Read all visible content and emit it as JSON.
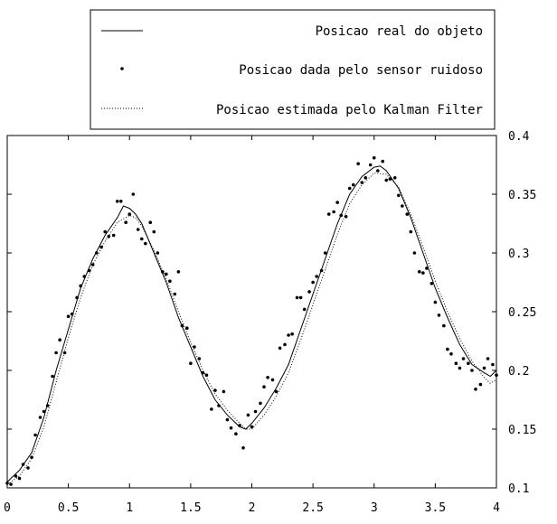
{
  "chart_data": {
    "type": "line",
    "title": "",
    "xlabel": "",
    "ylabel": "",
    "xlim": [
      0,
      4
    ],
    "ylim": [
      0.1,
      0.4
    ],
    "x_ticks": [
      0,
      0.5,
      1,
      1.5,
      2,
      2.5,
      3,
      3.5,
      4
    ],
    "x_tick_labels": [
      "0",
      "0.5",
      "1",
      "1.5",
      "2",
      "2.5",
      "3",
      "3.5",
      "4"
    ],
    "y_ticks": [
      0.1,
      0.15,
      0.2,
      0.25,
      0.3,
      0.35,
      0.4
    ],
    "y_tick_labels": [
      "0.1",
      "0.15",
      "0.2",
      "0.25",
      "0.3",
      "0.35",
      "0.4"
    ],
    "y_axis_side": "right",
    "grid": false,
    "legend_position": "top-right",
    "series": [
      {
        "name": "Posicao real do objeto",
        "style": "solid",
        "x": [
          0,
          0.1,
          0.2,
          0.3,
          0.4,
          0.5,
          0.6,
          0.7,
          0.8,
          0.9,
          0.95,
          1.0,
          1.05,
          1.1,
          1.2,
          1.3,
          1.4,
          1.5,
          1.6,
          1.7,
          1.8,
          1.9,
          1.95,
          2.0,
          2.1,
          2.2,
          2.3,
          2.4,
          2.5,
          2.6,
          2.7,
          2.8,
          2.9,
          3.0,
          3.05,
          3.1,
          3.2,
          3.3,
          3.4,
          3.5,
          3.6,
          3.7,
          3.8,
          3.9,
          3.95,
          4.0
        ],
        "y": [
          0.105,
          0.115,
          0.13,
          0.16,
          0.2,
          0.235,
          0.27,
          0.295,
          0.315,
          0.33,
          0.34,
          0.338,
          0.333,
          0.325,
          0.3,
          0.275,
          0.245,
          0.22,
          0.195,
          0.175,
          0.162,
          0.152,
          0.15,
          0.155,
          0.168,
          0.185,
          0.205,
          0.235,
          0.265,
          0.295,
          0.325,
          0.35,
          0.365,
          0.373,
          0.374,
          0.37,
          0.355,
          0.33,
          0.3,
          0.27,
          0.245,
          0.222,
          0.205,
          0.198,
          0.195,
          0.2
        ]
      },
      {
        "name": "Posicao dada pelo sensor ruidoso",
        "style": "points",
        "x": [
          0,
          0.03,
          0.07,
          0.1,
          0.13,
          0.17,
          0.2,
          0.23,
          0.27,
          0.3,
          0.33,
          0.37,
          0.4,
          0.43,
          0.47,
          0.5,
          0.53,
          0.57,
          0.6,
          0.63,
          0.67,
          0.7,
          0.73,
          0.77,
          0.8,
          0.83,
          0.87,
          0.9,
          0.93,
          0.97,
          1.0,
          1.03,
          1.07,
          1.1,
          1.13,
          1.17,
          1.2,
          1.23,
          1.27,
          1.3,
          1.33,
          1.37,
          1.4,
          1.43,
          1.47,
          1.5,
          1.53,
          1.57,
          1.6,
          1.63,
          1.67,
          1.7,
          1.73,
          1.77,
          1.8,
          1.83,
          1.87,
          1.9,
          1.93,
          1.97,
          2.0,
          2.03,
          2.07,
          2.1,
          2.13,
          2.17,
          2.2,
          2.23,
          2.27,
          2.3,
          2.33,
          2.37,
          2.4,
          2.43,
          2.47,
          2.5,
          2.53,
          2.57,
          2.6,
          2.63,
          2.67,
          2.7,
          2.73,
          2.77,
          2.8,
          2.83,
          2.87,
          2.9,
          2.93,
          2.97,
          3.0,
          3.03,
          3.07,
          3.1,
          3.13,
          3.17,
          3.2,
          3.23,
          3.27,
          3.3,
          3.33,
          3.37,
          3.4,
          3.43,
          3.47,
          3.5,
          3.53,
          3.57,
          3.6,
          3.63,
          3.67,
          3.7,
          3.73,
          3.77,
          3.8,
          3.83,
          3.87,
          3.9,
          3.93,
          3.97,
          4.0
        ],
        "y": [
          0.104,
          0.103,
          0.11,
          0.108,
          0.12,
          0.117,
          0.126,
          0.145,
          0.16,
          0.165,
          0.17,
          0.195,
          0.215,
          0.226,
          0.215,
          0.246,
          0.248,
          0.262,
          0.272,
          0.28,
          0.285,
          0.29,
          0.3,
          0.305,
          0.318,
          0.314,
          0.315,
          0.344,
          0.344,
          0.326,
          0.333,
          0.35,
          0.32,
          0.312,
          0.308,
          0.326,
          0.318,
          0.3,
          0.284,
          0.282,
          0.276,
          0.265,
          0.284,
          0.238,
          0.236,
          0.206,
          0.22,
          0.21,
          0.198,
          0.196,
          0.167,
          0.183,
          0.17,
          0.182,
          0.158,
          0.151,
          0.146,
          0.153,
          0.134,
          0.162,
          0.152,
          0.165,
          0.172,
          0.186,
          0.194,
          0.192,
          0.182,
          0.219,
          0.222,
          0.23,
          0.231,
          0.262,
          0.262,
          0.252,
          0.267,
          0.275,
          0.28,
          0.285,
          0.3,
          0.333,
          0.335,
          0.343,
          0.332,
          0.331,
          0.355,
          0.358,
          0.376,
          0.36,
          0.364,
          0.375,
          0.381,
          0.37,
          0.378,
          0.362,
          0.363,
          0.364,
          0.349,
          0.34,
          0.333,
          0.318,
          0.3,
          0.284,
          0.283,
          0.287,
          0.274,
          0.258,
          0.247,
          0.238,
          0.218,
          0.214,
          0.206,
          0.202,
          0.21,
          0.206,
          0.2,
          0.184,
          0.188,
          0.202,
          0.21,
          0.205,
          0.196
        ]
      },
      {
        "name": "Posicao estimada pelo Kalman Filter",
        "style": "dotted",
        "x": [
          0,
          0.1,
          0.2,
          0.3,
          0.4,
          0.5,
          0.6,
          0.7,
          0.8,
          0.9,
          1.0,
          1.05,
          1.1,
          1.2,
          1.3,
          1.4,
          1.5,
          1.6,
          1.7,
          1.8,
          1.9,
          1.95,
          2.0,
          2.1,
          2.2,
          2.3,
          2.4,
          2.5,
          2.6,
          2.7,
          2.8,
          2.9,
          3.0,
          3.1,
          3.2,
          3.3,
          3.4,
          3.5,
          3.6,
          3.7,
          3.8,
          3.9,
          3.95,
          4.0
        ],
        "y": [
          0.103,
          0.11,
          0.125,
          0.152,
          0.19,
          0.228,
          0.262,
          0.29,
          0.31,
          0.326,
          0.332,
          0.33,
          0.323,
          0.302,
          0.278,
          0.25,
          0.224,
          0.2,
          0.18,
          0.166,
          0.155,
          0.15,
          0.15,
          0.162,
          0.178,
          0.198,
          0.226,
          0.256,
          0.286,
          0.316,
          0.342,
          0.358,
          0.368,
          0.367,
          0.356,
          0.333,
          0.305,
          0.276,
          0.25,
          0.227,
          0.208,
          0.194,
          0.189,
          0.192
        ]
      }
    ]
  }
}
